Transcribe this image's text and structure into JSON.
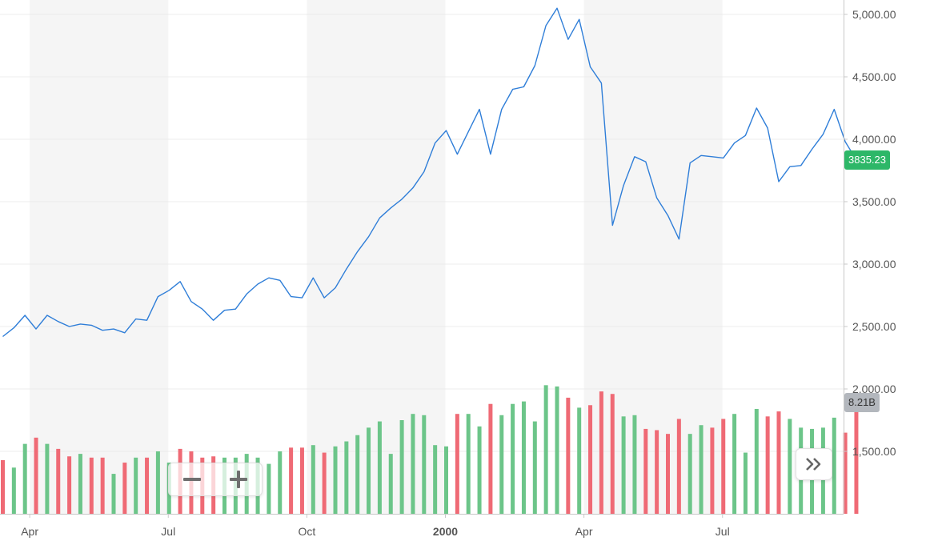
{
  "chart_data": {
    "type": "line",
    "price_axis": {
      "ticks": [
        1500,
        2000,
        2500,
        3000,
        3500,
        4000,
        4500,
        5000
      ],
      "tick_labels": [
        "1,500.00",
        "2,000.00",
        "2,500.00",
        "3,000.00",
        "3,500.00",
        "4,000.00",
        "4,500.00",
        "5,000.00"
      ],
      "range": [
        1000,
        5120
      ]
    },
    "time_axis": {
      "labels": [
        "Apr",
        "Jul",
        "Oct",
        "2000",
        "Apr",
        "Jul"
      ],
      "label_indices": [
        2.5,
        15,
        27.5,
        40,
        52.5,
        65
      ]
    },
    "shaded_quarters": [
      [
        2.5,
        15
      ],
      [
        27.5,
        40
      ],
      [
        52.5,
        65
      ]
    ],
    "price_series": {
      "name": "",
      "color": "#2f7ed8",
      "values": [
        2420,
        2490,
        2590,
        2480,
        2590,
        2540,
        2500,
        2520,
        2510,
        2470,
        2480,
        2450,
        2560,
        2550,
        2740,
        2790,
        2860,
        2700,
        2640,
        2550,
        2630,
        2640,
        2760,
        2840,
        2890,
        2870,
        2740,
        2730,
        2890,
        2730,
        2810,
        2960,
        3100,
        3220,
        3370,
        3450,
        3520,
        3610,
        3740,
        3970,
        4070,
        3880,
        4060,
        4240,
        3880,
        4240,
        4400,
        4420,
        4590,
        4910,
        5050,
        4800,
        4960,
        4580,
        4450,
        3310,
        3630,
        3860,
        3820,
        3530,
        3390,
        3200,
        3810,
        3870,
        3860,
        3850,
        3970,
        4030,
        4250,
        4090,
        3660,
        3780,
        3790,
        3920,
        4040,
        4240,
        3980,
        3835.23
      ]
    },
    "volume_series": {
      "up_color": "#6cc589",
      "down_color": "#ef6a75",
      "scale_max": 2200,
      "heights": [
        1430,
        1370,
        1560,
        1610,
        1560,
        1520,
        1460,
        1480,
        1450,
        1450,
        1320,
        1410,
        1450,
        1450,
        1500,
        1410,
        1520,
        1500,
        1450,
        1460,
        1450,
        1450,
        1480,
        1450,
        1400,
        1500,
        1530,
        1530,
        1550,
        1490,
        1540,
        1580,
        1630,
        1690,
        1740,
        1480,
        1750,
        1800,
        1790,
        1550,
        1540,
        1800,
        1800,
        1700,
        1880,
        1790,
        1880,
        1900,
        1740,
        2030,
        2020,
        1930,
        1850,
        1870,
        1980,
        1960,
        1780,
        1790,
        1680,
        1670,
        1640,
        1760,
        1640,
        1710,
        1690,
        1760,
        1800,
        1490,
        1840,
        1780,
        1820,
        1760,
        1690,
        1680,
        1690,
        1770,
        1650,
        1820
      ],
      "directions": [
        "down",
        "up",
        "up",
        "down",
        "up",
        "down",
        "down",
        "up",
        "down",
        "down",
        "up",
        "down",
        "up",
        "down",
        "up",
        "up",
        "down",
        "down",
        "down",
        "down",
        "up",
        "up",
        "up",
        "up",
        "up",
        "up",
        "down",
        "down",
        "up",
        "down",
        "up",
        "up",
        "up",
        "up",
        "up",
        "up",
        "up",
        "up",
        "up",
        "up",
        "up",
        "down",
        "up",
        "up",
        "down",
        "up",
        "up",
        "up",
        "up",
        "up",
        "up",
        "down",
        "up",
        "down",
        "down",
        "down",
        "up",
        "up",
        "down",
        "down",
        "down",
        "down",
        "up",
        "up",
        "down",
        "down",
        "up",
        "up",
        "up",
        "down",
        "down",
        "up",
        "up",
        "up",
        "up",
        "up",
        "down",
        "down"
      ]
    },
    "last_price": {
      "value": 3835.23,
      "label": "3835.23",
      "color": "#2db768"
    },
    "last_volume": {
      "label": "8.21B",
      "color": "#b3b7bd"
    },
    "grid": true
  },
  "controls": {
    "zoom_out_icon": "minus-icon",
    "zoom_in_icon": "plus-icon",
    "scroll_icon": "double-chevron-right-icon"
  }
}
